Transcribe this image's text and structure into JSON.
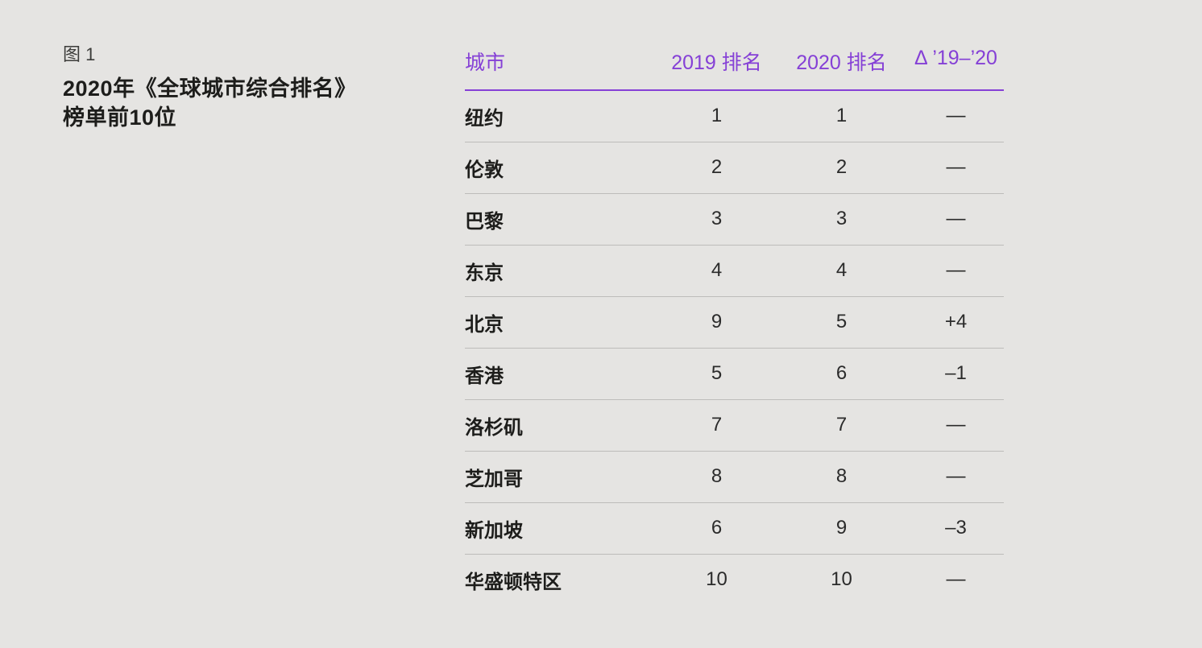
{
  "page": {
    "background_color": "#E5E4E2",
    "accent_color": "#8540D6",
    "rule_color": "#BDBCBA"
  },
  "figure": {
    "label": "图 1",
    "title_line1": "2020年《全球城市综合排名》",
    "title_line2": "榜单前10位"
  },
  "table": {
    "columns": [
      "城市",
      "2019 排名",
      "2020 排名",
      "Δ ’19–’20"
    ],
    "rows": [
      {
        "city": "纽约",
        "rank2019": "1",
        "rank2020": "1",
        "delta": "—"
      },
      {
        "city": "伦敦",
        "rank2019": "2",
        "rank2020": "2",
        "delta": "—"
      },
      {
        "city": "巴黎",
        "rank2019": "3",
        "rank2020": "3",
        "delta": "—"
      },
      {
        "city": "东京",
        "rank2019": "4",
        "rank2020": "4",
        "delta": "—"
      },
      {
        "city": "北京",
        "rank2019": "9",
        "rank2020": "5",
        "delta": "+4"
      },
      {
        "city": "香港",
        "rank2019": "5",
        "rank2020": "6",
        "delta": "–1"
      },
      {
        "city": "洛杉矶",
        "rank2019": "7",
        "rank2020": "7",
        "delta": "—"
      },
      {
        "city": "芝加哥",
        "rank2019": "8",
        "rank2020": "8",
        "delta": "—"
      },
      {
        "city": "新加坡",
        "rank2019": "6",
        "rank2020": "9",
        "delta": "–3"
      },
      {
        "city": "华盛顿特区",
        "rank2019": "10",
        "rank2020": "10",
        "delta": "—"
      }
    ]
  },
  "chart_data": {
    "type": "table",
    "title": "图 1 2020年《全球城市综合排名》榜单前10位",
    "columns": [
      "城市",
      "2019 排名",
      "2020 排名",
      "Δ ’19–’20"
    ],
    "rows": [
      [
        "纽约",
        1,
        1,
        "—"
      ],
      [
        "伦敦",
        2,
        2,
        "—"
      ],
      [
        "巴黎",
        3,
        3,
        "—"
      ],
      [
        "东京",
        4,
        4,
        "—"
      ],
      [
        "北京",
        9,
        5,
        "+4"
      ],
      [
        "香港",
        5,
        6,
        "–1"
      ],
      [
        "洛杉矶",
        7,
        7,
        "—"
      ],
      [
        "芝加哥",
        8,
        8,
        "—"
      ],
      [
        "新加坡",
        6,
        9,
        "–3"
      ],
      [
        "华盛顿特区",
        10,
        10,
        "—"
      ]
    ],
    "legend_position": "none",
    "grid": "horizontal-rules"
  }
}
